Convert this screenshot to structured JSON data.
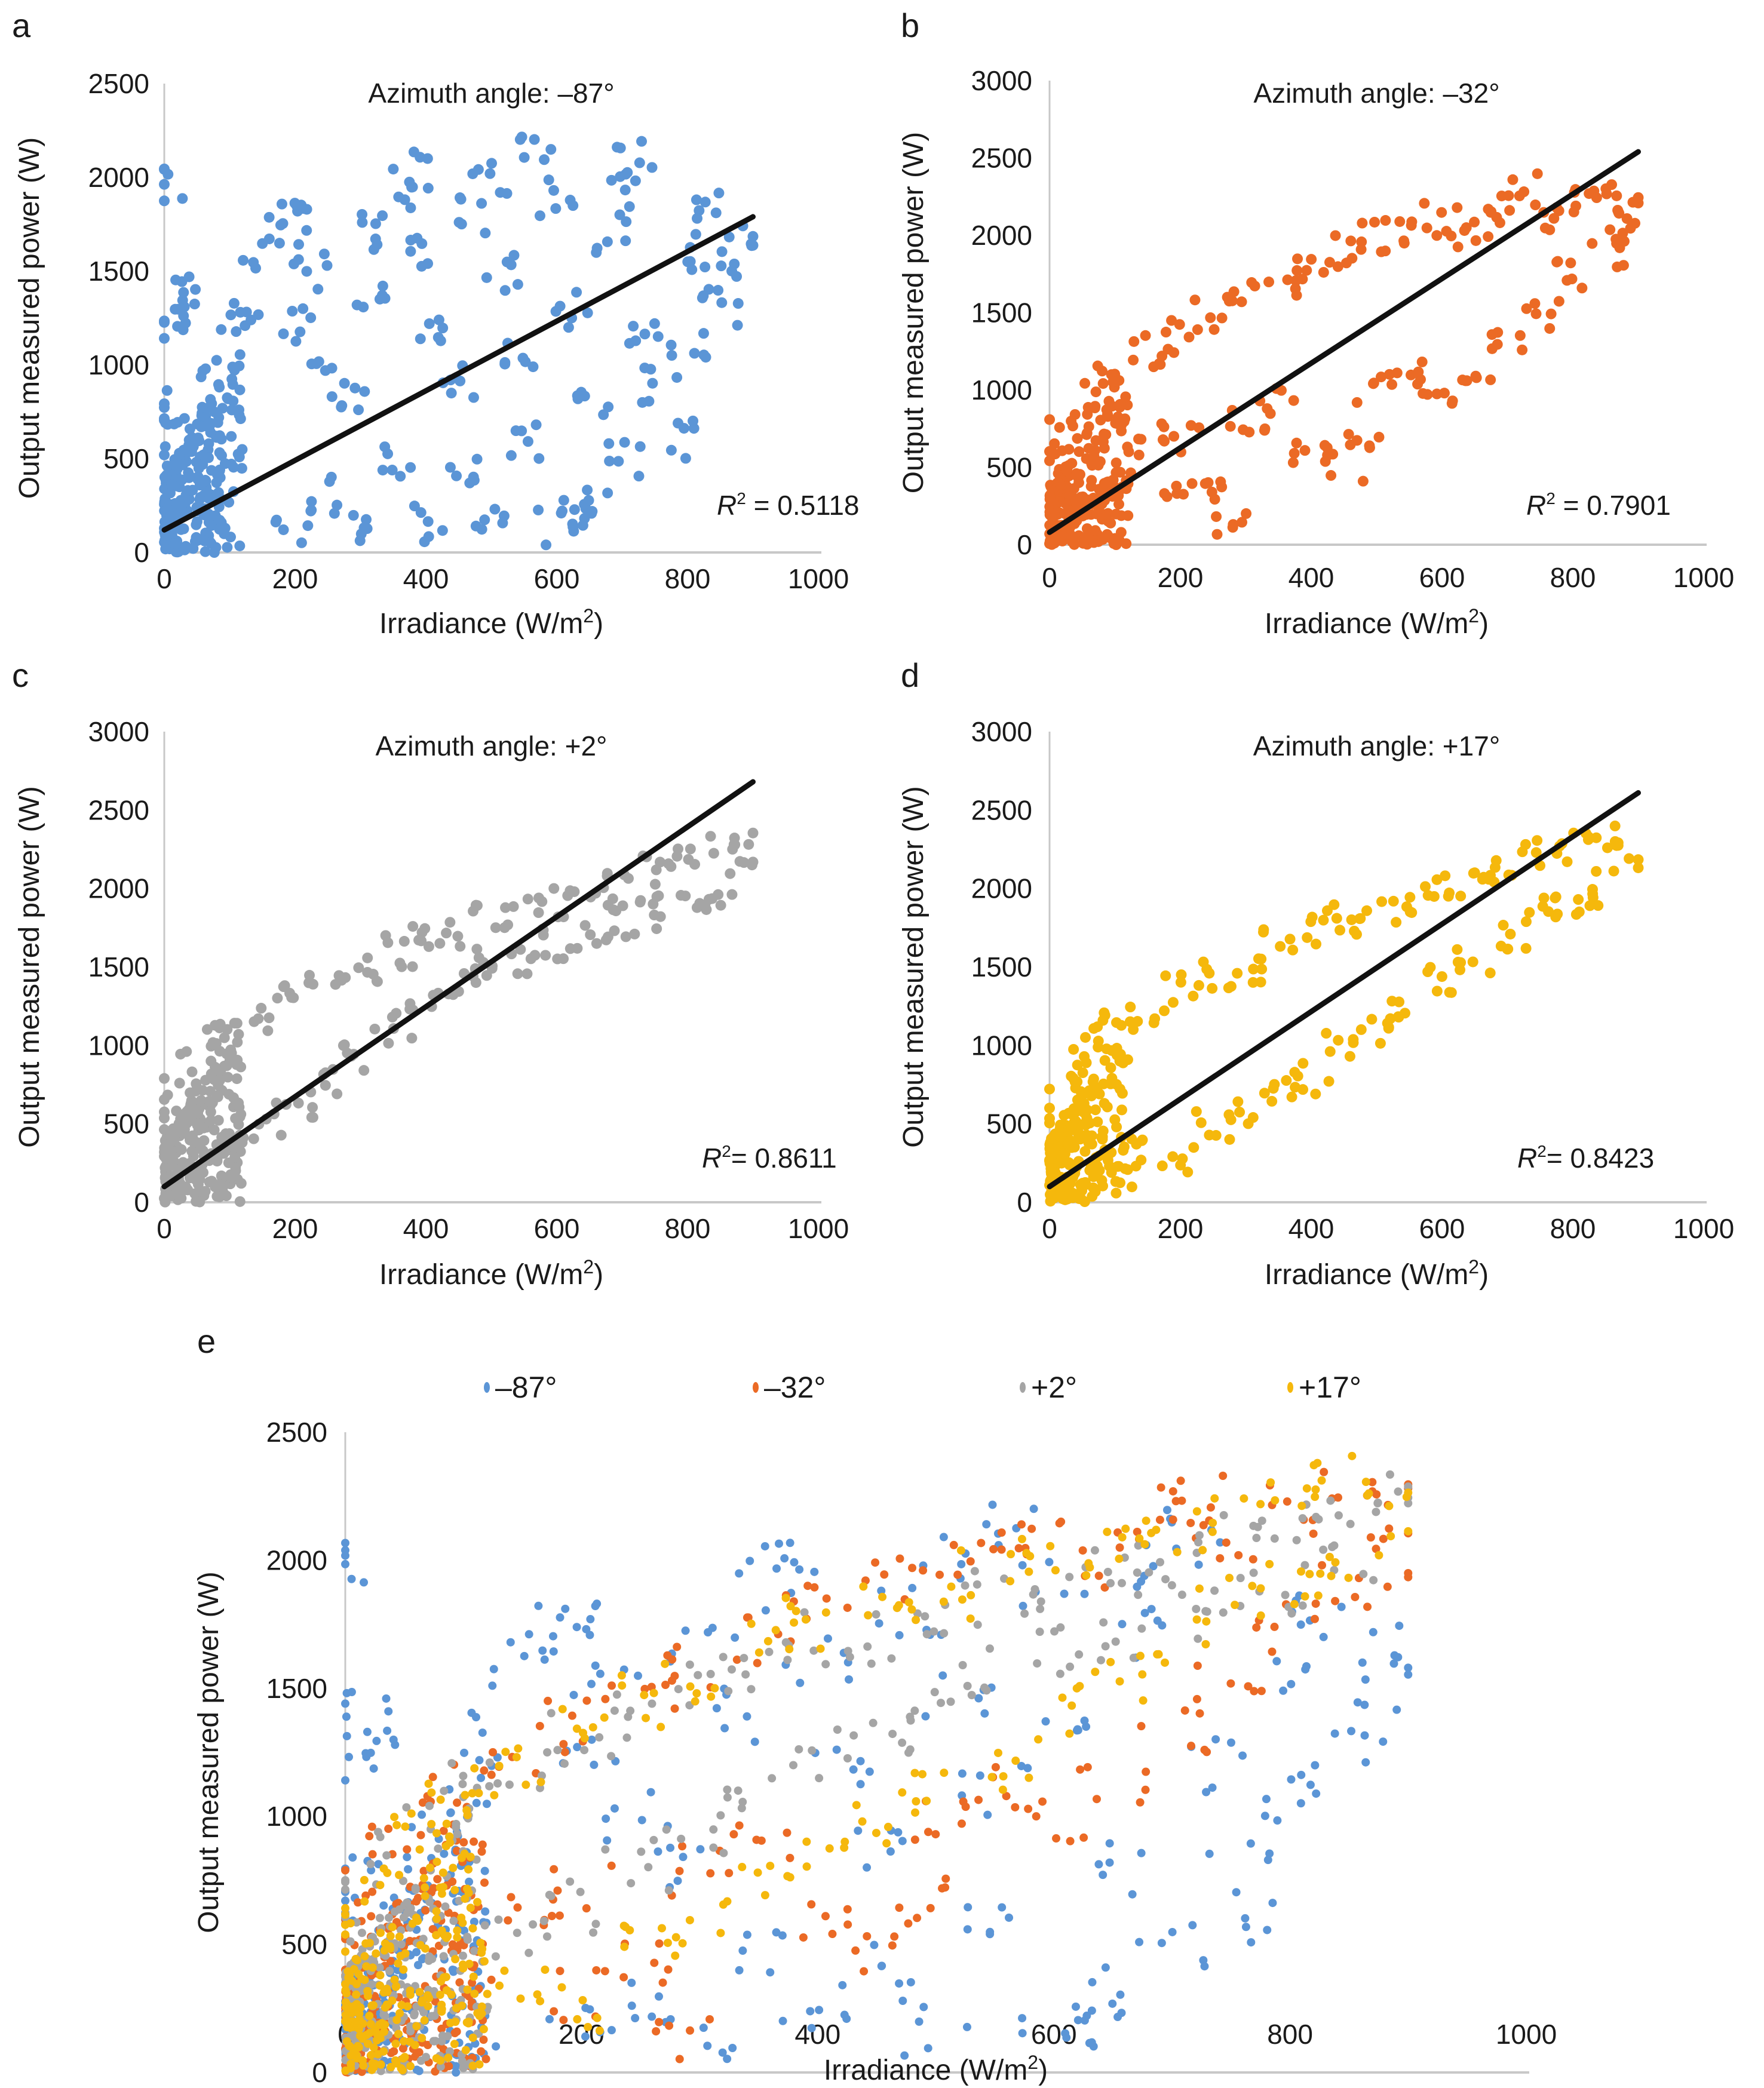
{
  "figure": {
    "panels": [
      "a",
      "b",
      "c",
      "d",
      "e"
    ]
  },
  "chart_data": [
    {
      "id": "a",
      "type": "scatter",
      "panel_label": "a",
      "title": "Azimuth angle: –87°",
      "xlabel": "Irradiance (W/m",
      "xlabel_sup": "2",
      "xlabel_close": ")",
      "ylabel": "Output measured power (W)",
      "xlim": [
        0,
        1000
      ],
      "ylim": [
        0,
        2500
      ],
      "xticks": [
        "0",
        "200",
        "400",
        "600",
        "800",
        "1000"
      ],
      "yticks": [
        "0",
        "500",
        "1000",
        "1500",
        "2000",
        "2500"
      ],
      "grid": false,
      "series": [
        {
          "name": "–87°",
          "color": "#5b95d6",
          "sample_points": [
            [
              0,
              1970
            ],
            [
              5,
              1250
            ],
            [
              15,
              1350
            ],
            [
              20,
              1400
            ],
            [
              0,
              800
            ],
            [
              10,
              600
            ],
            [
              30,
              400
            ],
            [
              50,
              700
            ],
            [
              80,
              900
            ],
            [
              100,
              1100
            ],
            [
              120,
              1300
            ],
            [
              150,
              1600
            ],
            [
              180,
              1750
            ],
            [
              190,
              1800
            ],
            [
              200,
              1200
            ],
            [
              220,
              1500
            ],
            [
              250,
              1000
            ],
            [
              280,
              800
            ],
            [
              300,
              1700
            ],
            [
              320,
              1400
            ],
            [
              350,
              1900
            ],
            [
              380,
              2050
            ],
            [
              400,
              1600
            ],
            [
              420,
              1200
            ],
            [
              450,
              900
            ],
            [
              480,
              1800
            ],
            [
              500,
              2000
            ],
            [
              520,
              1500
            ],
            [
              550,
              1100
            ],
            [
              570,
              2150
            ],
            [
              600,
              1900
            ],
            [
              620,
              1300
            ],
            [
              650,
              800
            ],
            [
              680,
              1700
            ],
            [
              700,
              1950
            ],
            [
              720,
              2100
            ],
            [
              740,
              1200
            ],
            [
              760,
              900
            ],
            [
              780,
              600
            ],
            [
              800,
              1600
            ],
            [
              820,
              1850
            ],
            [
              850,
              1300
            ],
            [
              870,
              1500
            ],
            [
              890,
              1650
            ],
            [
              200,
              150
            ],
            [
              300,
              120
            ],
            [
              400,
              150
            ],
            [
              500,
              170
            ],
            [
              600,
              150
            ],
            [
              630,
              200
            ],
            [
              100,
              50
            ],
            [
              250,
              300
            ],
            [
              350,
              500
            ],
            [
              450,
              400
            ],
            [
              550,
              600
            ],
            [
              650,
              300
            ],
            [
              700,
              500
            ],
            [
              800,
              1100
            ]
          ]
        }
      ],
      "trendline": {
        "x": [
          0,
          900
        ],
        "y": [
          120,
          1790
        ],
        "color": "#111111"
      },
      "annotation": {
        "label_r": "R",
        "label_sup": "2",
        "text": " = 0.5118",
        "r2": 0.5118
      },
      "legend": "none"
    },
    {
      "id": "b",
      "type": "scatter",
      "panel_label": "b",
      "title": "Azimuth angle: –32°",
      "xlabel": "Irradiance (W/m",
      "xlabel_sup": "2",
      "xlabel_close": ")",
      "ylabel": "Output measured power (W)",
      "xlim": [
        0,
        1000
      ],
      "ylim": [
        0,
        3000
      ],
      "xticks": [
        "0",
        "200",
        "400",
        "600",
        "800",
        "1000"
      ],
      "yticks": [
        "0",
        "500",
        "1000",
        "1500",
        "2000",
        "2500",
        "3000"
      ],
      "grid": false,
      "series": [
        {
          "name": "–32°",
          "color": "#eb6a25",
          "sample_points": [
            [
              0,
              500
            ],
            [
              20,
              700
            ],
            [
              50,
              850
            ],
            [
              80,
              1000
            ],
            [
              100,
              1100
            ],
            [
              150,
              1250
            ],
            [
              200,
              1350
            ],
            [
              250,
              1500
            ],
            [
              300,
              1600
            ],
            [
              350,
              1700
            ],
            [
              400,
              1800
            ],
            [
              450,
              1900
            ],
            [
              500,
              2000
            ],
            [
              550,
              2050
            ],
            [
              600,
              2100
            ],
            [
              650,
              2000
            ],
            [
              700,
              2150
            ],
            [
              720,
              2300
            ],
            [
              750,
              2100
            ],
            [
              800,
              2200
            ],
            [
              850,
              2250
            ],
            [
              890,
              2200
            ],
            [
              100,
              400
            ],
            [
              150,
              600
            ],
            [
              200,
              700
            ],
            [
              250,
              400
            ],
            [
              280,
              150
            ],
            [
              300,
              800
            ],
            [
              350,
              900
            ],
            [
              400,
              600
            ],
            [
              450,
              500
            ],
            [
              480,
              650
            ],
            [
              500,
              1000
            ],
            [
              550,
              1100
            ],
            [
              600,
              950
            ],
            [
              650,
              1150
            ],
            [
              700,
              1350
            ],
            [
              750,
              1500
            ],
            [
              800,
              1750
            ],
            [
              850,
              1900
            ],
            [
              880,
              2000
            ],
            [
              50,
              200
            ],
            [
              100,
              100
            ],
            [
              200,
              300
            ]
          ]
        }
      ],
      "trendline": {
        "x": [
          0,
          900
        ],
        "y": [
          80,
          2540
        ],
        "color": "#111111"
      },
      "annotation": {
        "label_r": "R",
        "label_sup": "2",
        "text": " = 0.7901",
        "r2": 0.7901
      },
      "legend": "none"
    },
    {
      "id": "c",
      "type": "scatter",
      "panel_label": "c",
      "title": "Azimuth angle: +2°",
      "xlabel": "Irradiance (W/m",
      "xlabel_sup": "2",
      "xlabel_close": ")",
      "ylabel": "Output measured power (W)",
      "xlim": [
        0,
        1000
      ],
      "ylim": [
        0,
        3000
      ],
      "xticks": [
        "0",
        "200",
        "400",
        "600",
        "800",
        "1000"
      ],
      "yticks": [
        "0",
        "500",
        "1000",
        "1500",
        "2000",
        "2500",
        "3000"
      ],
      "grid": false,
      "series": [
        {
          "name": "+2°",
          "color": "#a5a5a5",
          "sample_points": [
            [
              0,
              550
            ],
            [
              20,
              700
            ],
            [
              50,
              900
            ],
            [
              80,
              1050
            ],
            [
              100,
              1100
            ],
            [
              150,
              1200
            ],
            [
              200,
              1300
            ],
            [
              250,
              1400
            ],
            [
              300,
              1500
            ],
            [
              350,
              1600
            ],
            [
              400,
              1700
            ],
            [
              450,
              1700
            ],
            [
              500,
              1800
            ],
            [
              550,
              1850
            ],
            [
              600,
              1900
            ],
            [
              650,
              2000
            ],
            [
              700,
              2000
            ],
            [
              750,
              2100
            ],
            [
              800,
              2150
            ],
            [
              850,
              2250
            ],
            [
              890,
              2250
            ],
            [
              50,
              200
            ],
            [
              100,
              350
            ],
            [
              150,
              500
            ],
            [
              200,
              650
            ],
            [
              250,
              800
            ],
            [
              300,
              950
            ],
            [
              350,
              1100
            ],
            [
              400,
              1250
            ],
            [
              450,
              1350
            ],
            [
              500,
              1450
            ],
            [
              550,
              1550
            ],
            [
              600,
              1650
            ],
            [
              650,
              1700
            ],
            [
              700,
              1800
            ],
            [
              750,
              1850
            ],
            [
              800,
              1900
            ],
            [
              850,
              2000
            ]
          ]
        }
      ],
      "trendline": {
        "x": [
          0,
          900
        ],
        "y": [
          100,
          2680
        ],
        "color": "#111111"
      },
      "annotation": {
        "label_r": "R",
        "label_sup": "2",
        "text": "= 0.8611",
        "r2": 0.8611
      },
      "legend": "none"
    },
    {
      "id": "d",
      "type": "scatter",
      "panel_label": "d",
      "title": "Azimuth angle: +17°",
      "xlabel": "Irradiance (W/m",
      "xlabel_sup": "2",
      "xlabel_close": ")",
      "ylabel": "Output measured power (W)",
      "xlim": [
        0,
        1000
      ],
      "ylim": [
        0,
        3000
      ],
      "xticks": [
        "0",
        "200",
        "400",
        "600",
        "800",
        "1000"
      ],
      "yticks": [
        "0",
        "500",
        "1000",
        "1500",
        "2000",
        "2500",
        "3000"
      ],
      "grid": false,
      "series": [
        {
          "name": "+17°",
          "color": "#f5b80c",
          "sample_points": [
            [
              0,
              550
            ],
            [
              20,
              700
            ],
            [
              50,
              900
            ],
            [
              80,
              1050
            ],
            [
              100,
              1100
            ],
            [
              150,
              1200
            ],
            [
              200,
              1350
            ],
            [
              250,
              1450
            ],
            [
              300,
              1500
            ],
            [
              350,
              1650
            ],
            [
              400,
              1750
            ],
            [
              450,
              1800
            ],
            [
              500,
              1850
            ],
            [
              550,
              1950
            ],
            [
              600,
              2000
            ],
            [
              650,
              2050
            ],
            [
              700,
              2100
            ],
            [
              750,
              2200
            ],
            [
              800,
              2250
            ],
            [
              850,
              2300
            ],
            [
              890,
              2200
            ],
            [
              100,
              200
            ],
            [
              150,
              300
            ],
            [
              200,
              250
            ],
            [
              250,
              500
            ],
            [
              300,
              600
            ],
            [
              350,
              700
            ],
            [
              400,
              800
            ],
            [
              450,
              1000
            ],
            [
              500,
              1100
            ],
            [
              550,
              1200
            ],
            [
              600,
              1400
            ],
            [
              650,
              1550
            ],
            [
              700,
              1700
            ],
            [
              750,
              1850
            ],
            [
              800,
              1900
            ],
            [
              850,
              2000
            ]
          ]
        }
      ],
      "trendline": {
        "x": [
          0,
          900
        ],
        "y": [
          100,
          2610
        ],
        "color": "#111111"
      },
      "annotation": {
        "label_r": "R",
        "label_sup": "2",
        "text": "= 0.8423",
        "r2": 0.8423
      },
      "legend": "none"
    },
    {
      "id": "e",
      "type": "scatter",
      "panel_label": "e",
      "title": "",
      "xlabel": "Irradiance (W/m",
      "xlabel_sup": "2",
      "xlabel_close": ")",
      "ylabel": "Output measured power (W)",
      "xlim": [
        0,
        1000
      ],
      "ylim": [
        0,
        2500
      ],
      "xticks": [
        "0",
        "200",
        "400",
        "600",
        "800",
        "1000"
      ],
      "yticks": [
        "0",
        "500",
        "1000",
        "1500",
        "2000",
        "2500"
      ],
      "grid": false,
      "legend": "top",
      "series": [
        {
          "name": "–87°",
          "color": "#5b95d6",
          "ref": "a"
        },
        {
          "name": "–32°",
          "color": "#eb6a25",
          "ref": "b"
        },
        {
          "name": "+2°",
          "color": "#a5a5a5",
          "ref": "c"
        },
        {
          "name": "+17°",
          "color": "#f5b80c",
          "ref": "d"
        }
      ]
    }
  ]
}
